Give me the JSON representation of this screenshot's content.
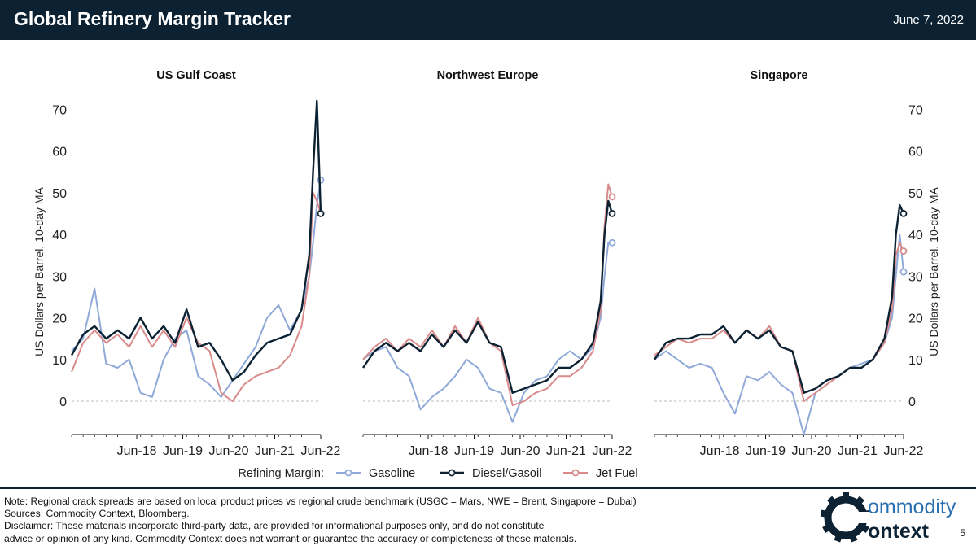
{
  "header": {
    "title": "Global Refinery Margin Tracker",
    "date": "June 7, 2022"
  },
  "footer": {
    "note": "Note: Regional crack spreads are based on local product prices vs regional crude benchmark (USGC = Mars, NWE = Brent, Singapore = Dubai)",
    "sources": "Sources: Commodity Context, Bloomberg.",
    "disclaimer_1": "Disclaimer: These materials incorporate third-party data, are provided for informational purposes only, and do not constitute",
    "disclaimer_2": "advice or opinion of any kind. Commodity Context does not warrant or guarantee the accuracy or completeness of these materials.",
    "page_number": "5",
    "logo_text_1": "ommodity",
    "logo_text_2": "ontext"
  },
  "colors": {
    "header_bg": "#0c2233",
    "gasoline": "#8fa9d8",
    "diesel": "#0c2233",
    "jet": "#d98b8b"
  },
  "chart_data": {
    "type": "line",
    "ylabel": "US Dollars per Barrel, 10-day MA",
    "legend_title": "Refining Margin:",
    "legend_position": "bottom",
    "x_ticks": [
      "Jun-18",
      "Jun-19",
      "Jun-20",
      "Jun-21",
      "Jun-22"
    ],
    "x_range": [
      "2017-01",
      "2022-06"
    ],
    "ylim": [
      -8,
      72
    ],
    "y_ticks": [
      0,
      10,
      20,
      30,
      40,
      50,
      60,
      70
    ],
    "zero_line": true,
    "grid": false,
    "series_names": [
      "Gasoline",
      "Diesel/Gasoil",
      "Jet Fuel"
    ],
    "panels": [
      {
        "title": "US Gulf Coast",
        "x": [
          "2017-01",
          "2017-04",
          "2017-07",
          "2017-10",
          "2018-01",
          "2018-04",
          "2018-07",
          "2018-10",
          "2019-01",
          "2019-04",
          "2019-07",
          "2019-10",
          "2020-01",
          "2020-04",
          "2020-07",
          "2020-10",
          "2021-01",
          "2021-04",
          "2021-07",
          "2021-10",
          "2022-01",
          "2022-03",
          "2022-04",
          "2022-05",
          "2022-06"
        ],
        "series": [
          {
            "name": "Gasoline",
            "values": [
              12,
              15,
              27,
              9,
              8,
              10,
              2,
              1,
              10,
              15,
              17,
              6,
              4,
              1,
              5,
              9,
              13,
              20,
              23,
              17,
              22,
              30,
              38,
              47,
              53
            ]
          },
          {
            "name": "Diesel/Gasoil",
            "values": [
              11,
              16,
              18,
              15,
              17,
              15,
              20,
              15,
              18,
              14,
              22,
              13,
              14,
              10,
              5,
              7,
              11,
              14,
              15,
              16,
              22,
              35,
              55,
              72,
              45
            ]
          },
          {
            "name": "Jet Fuel",
            "values": [
              7,
              14,
              17,
              14,
              16,
              13,
              18,
              13,
              17,
              13,
              20,
              14,
              12,
              2,
              0,
              4,
              6,
              7,
              8,
              11,
              18,
              30,
              50,
              48,
              45
            ]
          }
        ]
      },
      {
        "title": "Northwest Europe",
        "x": [
          "2017-01",
          "2017-04",
          "2017-07",
          "2017-10",
          "2018-01",
          "2018-04",
          "2018-07",
          "2018-10",
          "2019-01",
          "2019-04",
          "2019-07",
          "2019-10",
          "2020-01",
          "2020-04",
          "2020-07",
          "2020-10",
          "2021-01",
          "2021-04",
          "2021-07",
          "2021-10",
          "2022-01",
          "2022-03",
          "2022-04",
          "2022-05",
          "2022-06"
        ],
        "series": [
          {
            "name": "Gasoline",
            "values": [
              10,
              12,
              13,
              8,
              6,
              -2,
              1,
              3,
              6,
              10,
              8,
              3,
              2,
              -5,
              2,
              5,
              6,
              10,
              12,
              10,
              13,
              20,
              30,
              38,
              38
            ]
          },
          {
            "name": "Diesel/Gasoil",
            "values": [
              8,
              12,
              14,
              12,
              14,
              12,
              16,
              13,
              17,
              14,
              19,
              14,
              13,
              2,
              3,
              4,
              5,
              8,
              8,
              10,
              14,
              24,
              40,
              48,
              45
            ]
          },
          {
            "name": "Jet Fuel",
            "values": [
              10,
              13,
              15,
              12,
              15,
              13,
              17,
              13,
              18,
              14,
              20,
              14,
              12,
              -1,
              0,
              2,
              3,
              6,
              6,
              8,
              12,
              22,
              42,
              52,
              49
            ]
          }
        ]
      },
      {
        "title": "Singapore",
        "x": [
          "2017-01",
          "2017-04",
          "2017-07",
          "2017-10",
          "2018-01",
          "2018-04",
          "2018-07",
          "2018-10",
          "2019-01",
          "2019-04",
          "2019-07",
          "2019-10",
          "2020-01",
          "2020-04",
          "2020-07",
          "2020-10",
          "2021-01",
          "2021-04",
          "2021-07",
          "2021-10",
          "2022-01",
          "2022-03",
          "2022-04",
          "2022-05",
          "2022-06"
        ],
        "series": [
          {
            "name": "Gasoline",
            "values": [
              10,
              12,
              10,
              8,
              9,
              8,
              2,
              -3,
              6,
              5,
              7,
              4,
              2,
              -8,
              2,
              4,
              6,
              8,
              9,
              10,
              14,
              20,
              30,
              40,
              31
            ]
          },
          {
            "name": "Diesel/Gasoil",
            "values": [
              10,
              14,
              15,
              15,
              16,
              16,
              18,
              14,
              17,
              15,
              17,
              13,
              12,
              2,
              3,
              5,
              6,
              8,
              8,
              10,
              15,
              25,
              40,
              47,
              45
            ]
          },
          {
            "name": "Jet Fuel",
            "values": [
              11,
              13,
              15,
              14,
              15,
              15,
              17,
              14,
              17,
              15,
              18,
              13,
              12,
              0,
              2,
              4,
              6,
              8,
              8,
              10,
              14,
              22,
              35,
              38,
              36
            ]
          }
        ]
      }
    ]
  }
}
